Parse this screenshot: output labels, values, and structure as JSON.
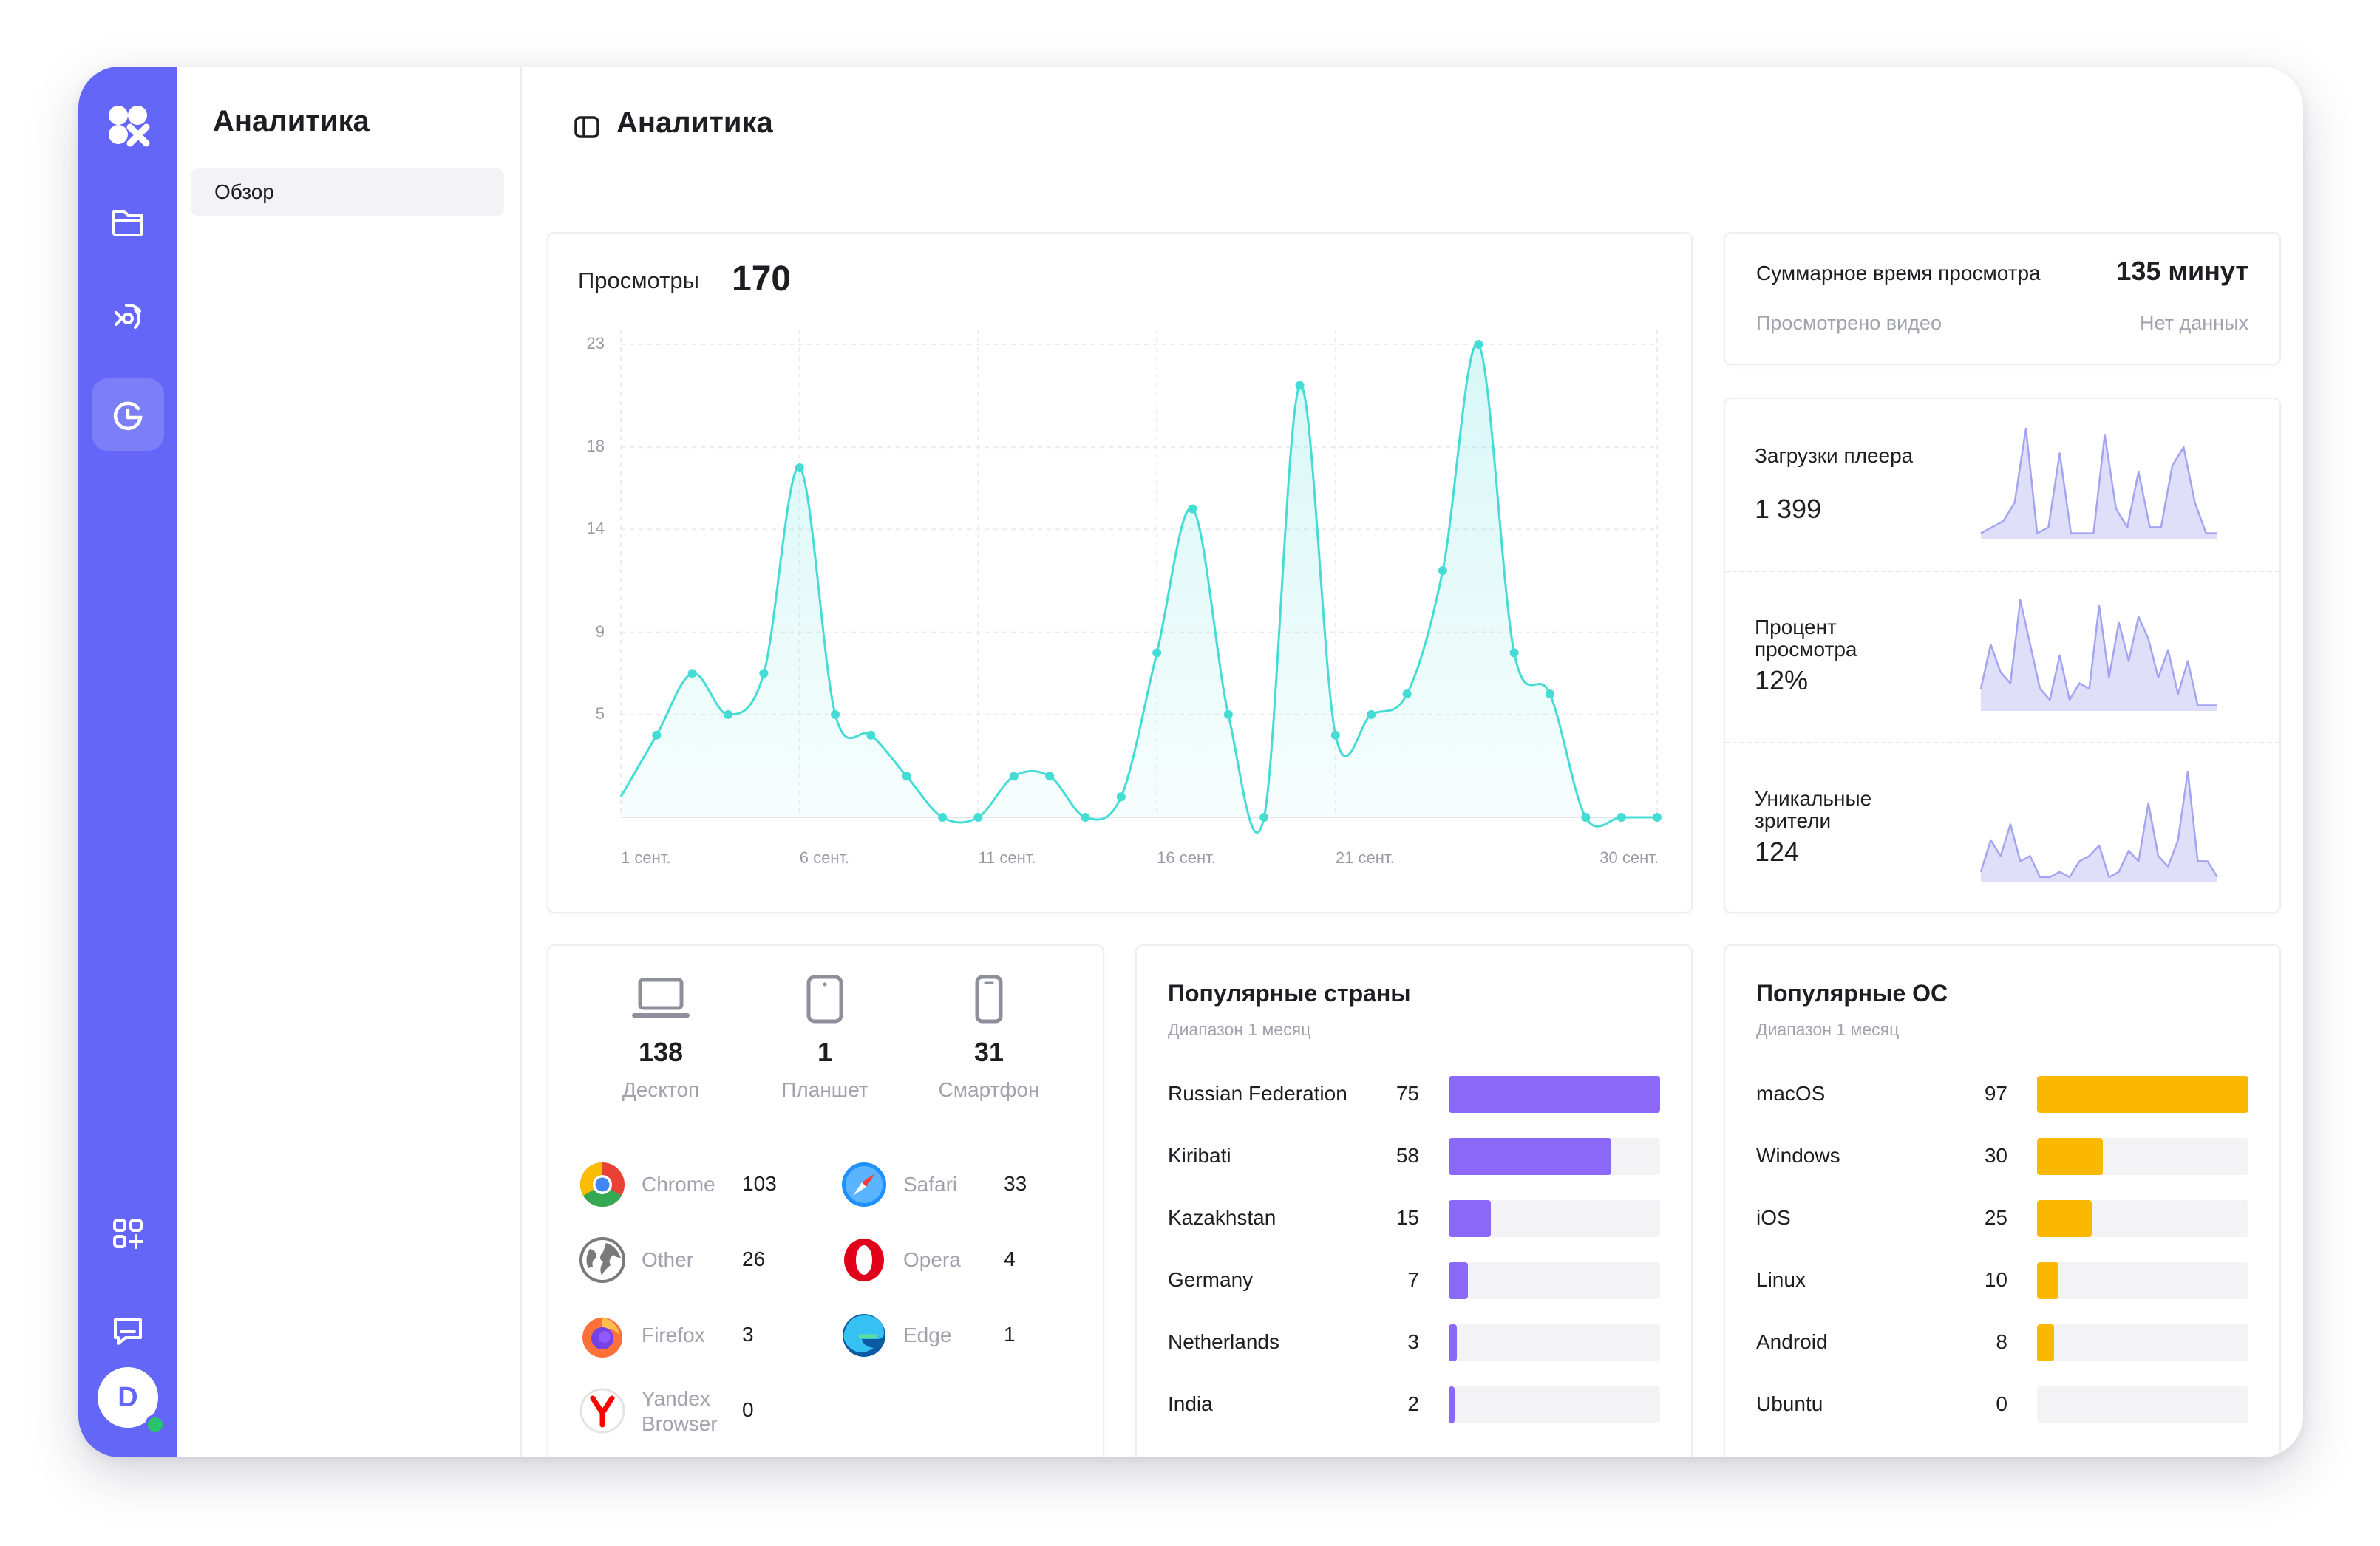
{
  "colors": {
    "brand": "#6366f6",
    "teal": "#45dcd6",
    "purple": "#8b68f8",
    "amber": "#fbb800",
    "spark": "#a4a4f0"
  },
  "sidebar": {
    "avatar_letter": "D",
    "icons": [
      "logo-icon",
      "folder-icon",
      "broadcast-icon",
      "analytics-icon",
      "apps-add-icon",
      "chat-icon"
    ]
  },
  "subnav": {
    "title": "Аналитика",
    "items": [
      {
        "label": "Обзор"
      }
    ]
  },
  "header": {
    "title": "Аналитика"
  },
  "views": {
    "label": "Просмотры",
    "total": "170"
  },
  "chart_data": {
    "type": "area",
    "title": "Просмотры",
    "x": [
      "1 сент.",
      "2",
      "3",
      "4",
      "5",
      "6 сент.",
      "7",
      "8",
      "9",
      "10",
      "11 сент.",
      "12",
      "13",
      "14",
      "15",
      "16 сент.",
      "17",
      "18",
      "19",
      "20",
      "21 сент.",
      "22",
      "23",
      "24",
      "25",
      "26",
      "27",
      "28",
      "29",
      "30 сент."
    ],
    "x_tick_labels": [
      "1 сент.",
      "6 сент.",
      "11 сент.",
      "16 сент.",
      "21 сент.",
      "30 сент."
    ],
    "y_ticks": [
      5,
      9,
      14,
      18,
      23
    ],
    "ylim": [
      0,
      23
    ],
    "series": [
      {
        "values": [
          1,
          4,
          7,
          5,
          7,
          17,
          5,
          4,
          2,
          0,
          0,
          2,
          2,
          0,
          1,
          8,
          15,
          5,
          0,
          21,
          4,
          5,
          6,
          12,
          23,
          8,
          6,
          0,
          0,
          0
        ]
      }
    ],
    "grid": true
  },
  "watch_time": {
    "label": "Суммарное время просмотра",
    "value": "135 минут",
    "watched_label": "Просмотрено видео",
    "watched_value": "Нет данных"
  },
  "mini_stats": [
    {
      "label": "Загрузки плеера",
      "value": "1 399",
      "spark": [
        1,
        2,
        3,
        6,
        18,
        1,
        2,
        14,
        1,
        1,
        1,
        17,
        5,
        2,
        11,
        2,
        2,
        12,
        15,
        6,
        1,
        1
      ]
    },
    {
      "label": "Процент просмотра",
      "value": "12%",
      "spark": [
        4,
        12,
        7,
        5,
        20,
        12,
        4,
        2,
        10,
        2,
        5,
        4,
        19,
        6,
        16,
        9,
        17,
        13,
        6,
        11,
        3,
        9,
        1,
        1,
        1
      ]
    },
    {
      "label": "Уникальные зрители",
      "value": "124",
      "spark": [
        2,
        8,
        5,
        11,
        4,
        5,
        1,
        1,
        2,
        1,
        4,
        5,
        7,
        1,
        2,
        6,
        4,
        15,
        5,
        3,
        8,
        21,
        4,
        4,
        1
      ]
    }
  ],
  "devices": [
    {
      "icon": "laptop-icon",
      "count": "138",
      "label": "Десктоп"
    },
    {
      "icon": "tablet-icon",
      "count": "1",
      "label": "Планшет"
    },
    {
      "icon": "smartphone-icon",
      "count": "31",
      "label": "Смартфон"
    }
  ],
  "browsers": [
    {
      "name": "Chrome",
      "count": "103",
      "icon": "chrome-icon"
    },
    {
      "name": "Safari",
      "count": "33",
      "icon": "safari-icon"
    },
    {
      "name": "Other",
      "count": "26",
      "icon": "globe-icon"
    },
    {
      "name": "Opera",
      "count": "4",
      "icon": "opera-icon"
    },
    {
      "name": "Firefox",
      "count": "3",
      "icon": "firefox-icon"
    },
    {
      "name": "Edge",
      "count": "1",
      "icon": "edge-icon"
    },
    {
      "name": "Yandex Browser",
      "count": "0",
      "icon": "yandex-icon"
    }
  ],
  "countries": {
    "title": "Популярные страны",
    "subtitle": "Диапазон 1 месяц",
    "rows": [
      {
        "name": "Russian Federation",
        "value": "75",
        "fraction": 1.0
      },
      {
        "name": "Kiribati",
        "value": "58",
        "fraction": 0.77
      },
      {
        "name": "Kazakhstan",
        "value": "15",
        "fraction": 0.2
      },
      {
        "name": "Germany",
        "value": "7",
        "fraction": 0.09
      },
      {
        "name": "Netherlands",
        "value": "3",
        "fraction": 0.04
      },
      {
        "name": "India",
        "value": "2",
        "fraction": 0.027
      }
    ]
  },
  "os": {
    "title": "Популярные ОС",
    "subtitle": "Диапазон 1 месяц",
    "rows": [
      {
        "name": "macOS",
        "value": "97",
        "fraction": 1.0
      },
      {
        "name": "Windows",
        "value": "30",
        "fraction": 0.31
      },
      {
        "name": "iOS",
        "value": "25",
        "fraction": 0.26
      },
      {
        "name": "Linux",
        "value": "10",
        "fraction": 0.1
      },
      {
        "name": "Android",
        "value": "8",
        "fraction": 0.08
      },
      {
        "name": "Ubuntu",
        "value": "0",
        "fraction": 0
      }
    ]
  }
}
